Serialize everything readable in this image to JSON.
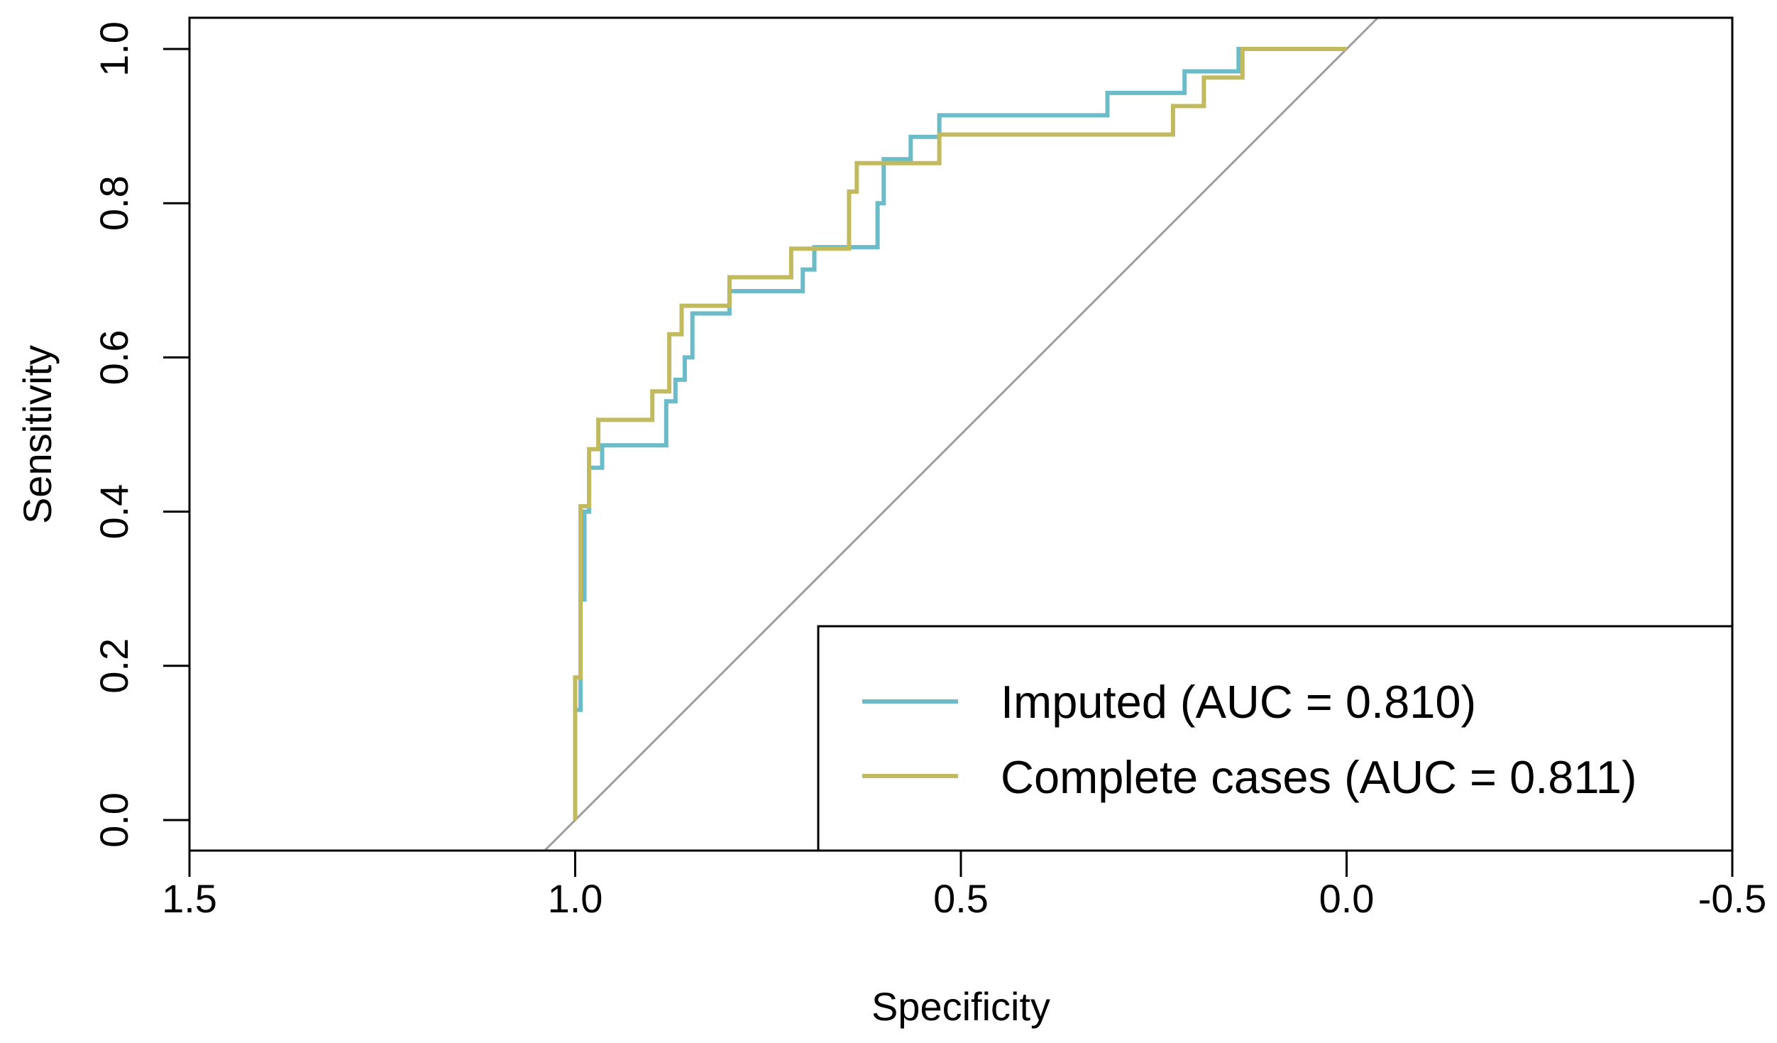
{
  "chart_data": {
    "type": "line",
    "title": "",
    "xlabel": "Specificity",
    "ylabel": "Sensitivity",
    "xlim": [
      1.5,
      -0.5
    ],
    "ylim": [
      0.0,
      1.0
    ],
    "xticks": [
      "1.5",
      "1.0",
      "0.5",
      "0.0",
      "-0.5"
    ],
    "yticks": [
      "0.0",
      "0.2",
      "0.4",
      "0.6",
      "0.8",
      "1.0"
    ],
    "grid": false,
    "legend_position": "bottom-right",
    "reference_line": {
      "from": [
        1.0,
        0.0
      ],
      "to": [
        0.0,
        1.0
      ],
      "color": "#9e9e9e"
    },
    "series": [
      {
        "name": "Imputed (AUC = 0.810)",
        "color": "#6bbcc8",
        "points": [
          [
            1.0,
            0.0
          ],
          [
            1.0,
            0.143
          ],
          [
            0.993,
            0.143
          ],
          [
            0.993,
            0.286
          ],
          [
            0.988,
            0.286
          ],
          [
            0.988,
            0.4
          ],
          [
            0.982,
            0.4
          ],
          [
            0.982,
            0.457
          ],
          [
            0.965,
            0.457
          ],
          [
            0.965,
            0.486
          ],
          [
            0.882,
            0.486
          ],
          [
            0.882,
            0.543
          ],
          [
            0.87,
            0.543
          ],
          [
            0.87,
            0.571
          ],
          [
            0.858,
            0.571
          ],
          [
            0.858,
            0.6
          ],
          [
            0.848,
            0.6
          ],
          [
            0.848,
            0.657
          ],
          [
            0.8,
            0.657
          ],
          [
            0.8,
            0.686
          ],
          [
            0.705,
            0.686
          ],
          [
            0.705,
            0.714
          ],
          [
            0.69,
            0.714
          ],
          [
            0.69,
            0.743
          ],
          [
            0.608,
            0.743
          ],
          [
            0.608,
            0.8
          ],
          [
            0.6,
            0.8
          ],
          [
            0.6,
            0.857
          ],
          [
            0.565,
            0.857
          ],
          [
            0.565,
            0.886
          ],
          [
            0.528,
            0.886
          ],
          [
            0.528,
            0.914
          ],
          [
            0.31,
            0.914
          ],
          [
            0.31,
            0.943
          ],
          [
            0.21,
            0.943
          ],
          [
            0.21,
            0.971
          ],
          [
            0.14,
            0.971
          ],
          [
            0.14,
            1.0
          ],
          [
            0.0,
            1.0
          ]
        ]
      },
      {
        "name": "Complete cases (AUC = 0.811)",
        "color": "#c2ba5e",
        "points": [
          [
            1.0,
            0.0
          ],
          [
            1.0,
            0.185
          ],
          [
            0.993,
            0.185
          ],
          [
            0.993,
            0.407
          ],
          [
            0.982,
            0.407
          ],
          [
            0.982,
            0.481
          ],
          [
            0.97,
            0.481
          ],
          [
            0.97,
            0.519
          ],
          [
            0.9,
            0.519
          ],
          [
            0.9,
            0.556
          ],
          [
            0.878,
            0.556
          ],
          [
            0.878,
            0.63
          ],
          [
            0.862,
            0.63
          ],
          [
            0.862,
            0.667
          ],
          [
            0.8,
            0.667
          ],
          [
            0.8,
            0.704
          ],
          [
            0.72,
            0.704
          ],
          [
            0.72,
            0.741
          ],
          [
            0.645,
            0.741
          ],
          [
            0.645,
            0.815
          ],
          [
            0.635,
            0.815
          ],
          [
            0.635,
            0.852
          ],
          [
            0.528,
            0.852
          ],
          [
            0.528,
            0.889
          ],
          [
            0.225,
            0.889
          ],
          [
            0.225,
            0.926
          ],
          [
            0.185,
            0.926
          ],
          [
            0.185,
            0.963
          ],
          [
            0.135,
            0.963
          ],
          [
            0.135,
            1.0
          ],
          [
            0.0,
            1.0
          ]
        ]
      }
    ]
  }
}
